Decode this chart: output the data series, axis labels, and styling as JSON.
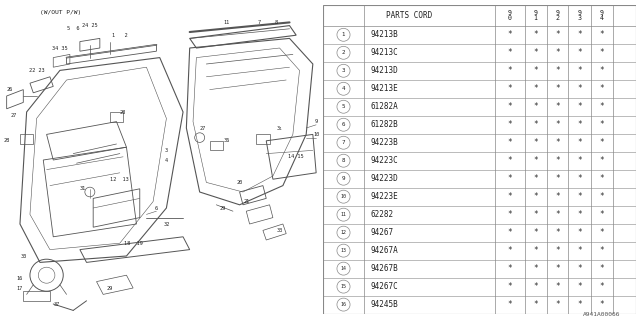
{
  "title": "A941A00066",
  "note": "(W/OUT P/W)",
  "rows": [
    {
      "num": 1,
      "code": "94213B"
    },
    {
      "num": 2,
      "code": "94213C"
    },
    {
      "num": 3,
      "code": "94213D"
    },
    {
      "num": 4,
      "code": "94213E"
    },
    {
      "num": 5,
      "code": "61282A"
    },
    {
      "num": 6,
      "code": "61282B"
    },
    {
      "num": 7,
      "code": "94223B"
    },
    {
      "num": 8,
      "code": "94223C"
    },
    {
      "num": 9,
      "code": "94223D"
    },
    {
      "num": 10,
      "code": "94223E"
    },
    {
      "num": 11,
      "code": "62282"
    },
    {
      "num": 12,
      "code": "94267"
    },
    {
      "num": 13,
      "code": "94267A"
    },
    {
      "num": 14,
      "code": "94267B"
    },
    {
      "num": 15,
      "code": "94267C"
    },
    {
      "num": 16,
      "code": "94245B"
    }
  ],
  "year_cols": [
    "9\n0",
    "9\n1",
    "9\n2",
    "9\n3",
    "9\n4"
  ],
  "bg_color": "#ffffff",
  "line_color": "#555555",
  "text_color": "#222222"
}
